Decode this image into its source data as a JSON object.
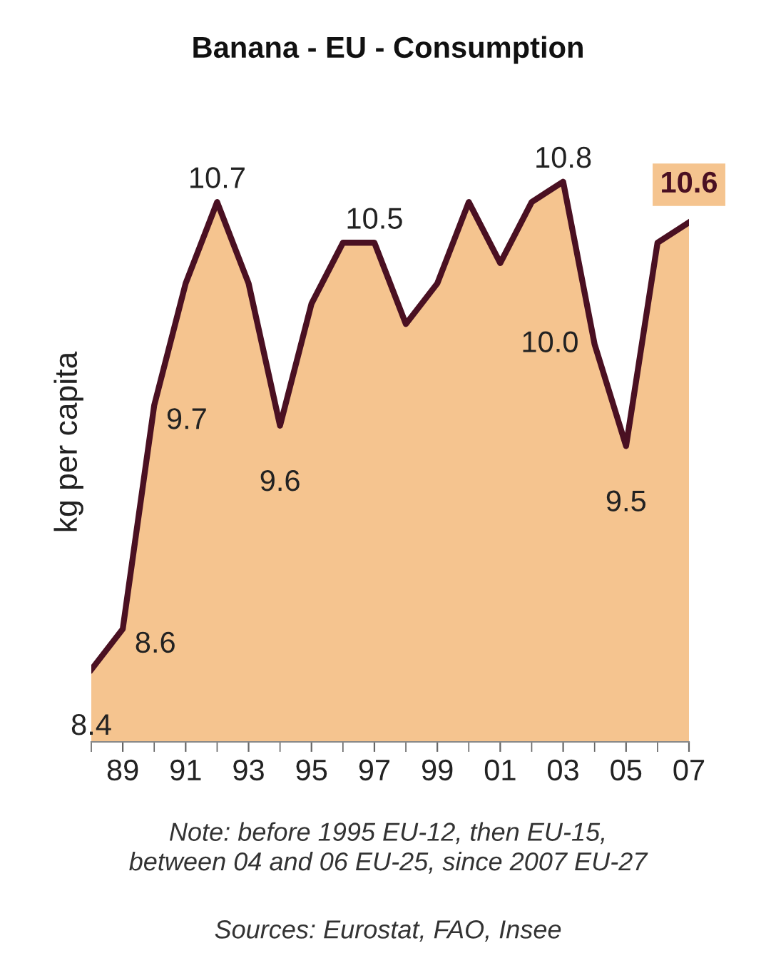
{
  "chart_data": {
    "type": "area",
    "title": "Banana - EU - Consumption",
    "ylabel": "kg per capita",
    "x": [
      1988,
      1989,
      1990,
      1991,
      1992,
      1993,
      1994,
      1995,
      1996,
      1997,
      1998,
      1999,
      2000,
      2001,
      2002,
      2003,
      2004,
      2005,
      2006,
      2007
    ],
    "series": [
      {
        "color": "#f5c48f",
        "values": [
          8.4,
          8.6,
          9.7,
          10.3,
          10.7,
          10.3,
          9.6,
          10.2,
          10.5,
          10.5,
          10.1,
          10.3,
          10.7,
          10.4,
          10.7,
          10.8,
          10.0,
          9.5,
          10.5,
          10.6
        ],
        "value_labels": [
          "8.4",
          "8.6",
          "9.7",
          null,
          "10.7",
          null,
          "9.6",
          null,
          null,
          "10.5",
          null,
          null,
          null,
          null,
          null,
          "10.8",
          "10.0",
          "9.5",
          null,
          "10.6"
        ]
      }
    ],
    "xlim": [
      1988,
      2007
    ],
    "xticks": [
      {
        "value": 1989,
        "label": "89"
      },
      {
        "value": 1991,
        "label": "91"
      },
      {
        "value": 1993,
        "label": "93"
      },
      {
        "value": 1995,
        "label": "95"
      },
      {
        "value": 1997,
        "label": "97"
      },
      {
        "value": 1999,
        "label": "99"
      },
      {
        "value": 2001,
        "label": "01"
      },
      {
        "value": 2003,
        "label": "03"
      },
      {
        "value": 2005,
        "label": "05"
      },
      {
        "value": 2007,
        "label": "07"
      }
    ],
    "tick_labels": "x",
    "grid": false,
    "annotations": [
      "Note: before 1995 EU-12, then EU-15,\nbetween 04 and 06 EU-25, since 2007 EU-27",
      "Sources: Eurostat, FAO, Insee"
    ]
  }
}
